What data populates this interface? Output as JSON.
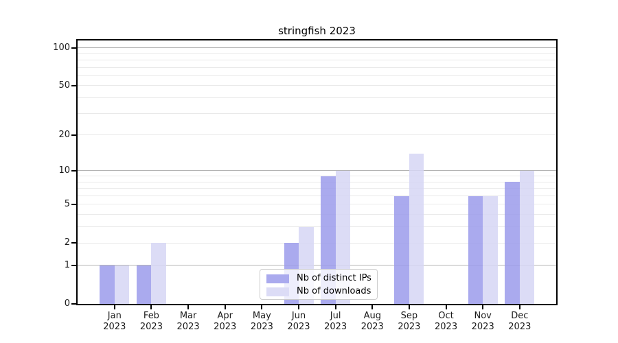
{
  "title": "stringfish 2023",
  "legend": {
    "items": [
      {
        "label": "Nb of distinct IPs",
        "color": "#aaaaee"
      },
      {
        "label": "Nb of downloads",
        "color": "#dcdcf6"
      }
    ]
  },
  "colors": {
    "bar_distinct_ips": "rgba(155,155,235,0.85)",
    "bar_downloads": "rgba(214,214,244,0.85)",
    "grid_major": "#b3b3b3",
    "grid_minor": "#e9e9e9",
    "axis": "#000000",
    "legend_border": "#cccccc"
  },
  "chart_data": {
    "type": "bar",
    "title": "stringfish 2023",
    "categories": [
      "Jan",
      "Feb",
      "Mar",
      "Apr",
      "May",
      "Jun",
      "Jul",
      "Aug",
      "Sep",
      "Oct",
      "Nov",
      "Dec"
    ],
    "x_year": "2023",
    "series": [
      {
        "name": "Nb of distinct IPs",
        "color": "rgba(155,155,235,0.85)",
        "values": [
          1,
          1,
          0,
          0,
          0,
          2,
          9,
          0,
          6,
          0,
          6,
          8
        ]
      },
      {
        "name": "Nb of downloads",
        "color": "rgba(214,214,244,0.85)",
        "values": [
          1,
          2,
          0,
          0,
          0,
          3,
          10,
          0,
          14,
          0,
          6,
          10
        ]
      }
    ],
    "xlabel": "",
    "ylabel": "",
    "y_axis": {
      "scale": "log1p",
      "ticks": [
        0,
        1,
        2,
        5,
        10,
        20,
        50,
        100
      ],
      "tick_labels": [
        "0",
        "1",
        "2",
        "5",
        "10",
        "20",
        "50",
        "100"
      ],
      "major_grid": [
        1,
        10,
        100
      ],
      "minor_grid": [
        2,
        3,
        4,
        5,
        6,
        7,
        8,
        9,
        20,
        30,
        40,
        50,
        60,
        70,
        80,
        90
      ],
      "max": 114
    },
    "grid": true,
    "legend_position": "lower center"
  }
}
